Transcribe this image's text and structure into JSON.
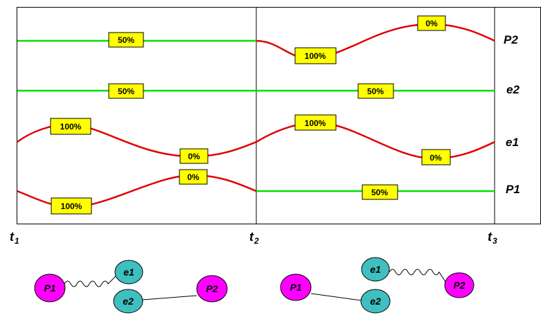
{
  "row_labels": [
    "P2",
    "e2",
    "e1",
    "P1"
  ],
  "time_marks": [
    {
      "main": "t",
      "sub": "1"
    },
    {
      "main": "t",
      "sub": "2"
    },
    {
      "main": "t",
      "sub": "3"
    }
  ],
  "value_labels": {
    "p2_flat": "50%",
    "p2_low": "100%",
    "p2_high": "0%",
    "e2_a": "50%",
    "e2_b": "50%",
    "e1_peak1": "100%",
    "e1_trough1": "0%",
    "e1_peak2": "100%",
    "e1_trough2": "0%",
    "p1_high": "0%",
    "p1_low": "100%",
    "p1_flat": "50%"
  },
  "graph_left": {
    "nodes": {
      "P1": "P1",
      "e1": "e1",
      "e2": "e2",
      "P2": "P2"
    }
  },
  "graph_right": {
    "nodes": {
      "P1": "P1",
      "e1": "e1",
      "e2": "e2",
      "P2": "P2"
    }
  },
  "colors": {
    "flat_line": "#00e000",
    "wave_line": "#e00000",
    "label_box": "#ffff00",
    "proton_node": "#ff00ff",
    "electron_node": "#3fbfbf"
  }
}
